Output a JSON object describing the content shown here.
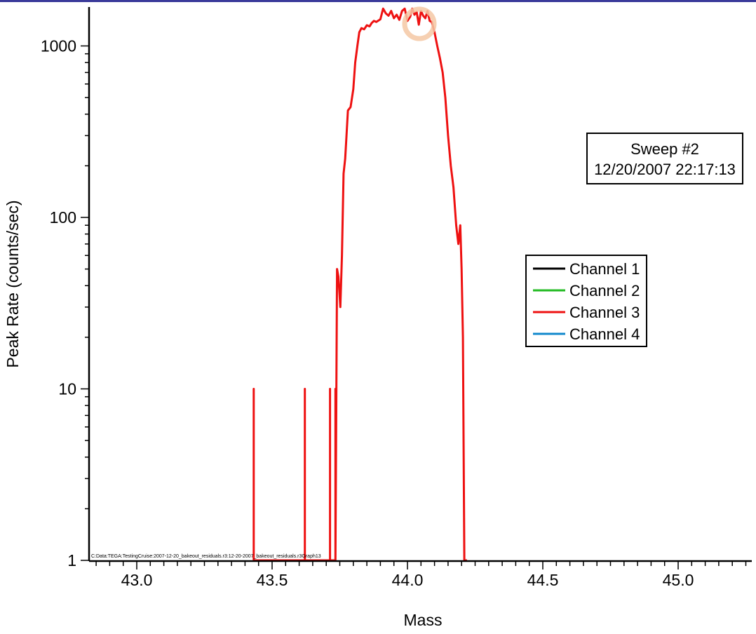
{
  "chart_data": {
    "type": "line",
    "xlabel": "Mass",
    "ylabel": "Peak Rate (counts/sec)",
    "xlim": [
      42.8,
      45.3
    ],
    "ylim": [
      1,
      1700
    ],
    "yscale": "log",
    "x_ticks": [
      "43.0",
      "43.5",
      "44.0",
      "44.5",
      "45.0"
    ],
    "y_ticks": [
      "1",
      "10",
      "100",
      "1000"
    ],
    "grid": false,
    "legend_placement": "right",
    "info_box": {
      "line1": "Sweep #2",
      "line2": "12/20/2007 22:17:13"
    },
    "file_path": "C:Data:TEGA:TestingCruise:2007-12-20_bakeout_residuals.r3:12-20-2007_bakeout_residuals.r3Graph13",
    "series": [
      {
        "name": "Channel 1",
        "color": "#000000",
        "x": [],
        "y": []
      },
      {
        "name": "Channel 2",
        "color": "#22bb22",
        "x": [],
        "y": []
      },
      {
        "name": "Channel 3",
        "color": "#ee1111",
        "x": [
          43.432,
          43.432,
          43.432,
          43.621,
          43.621,
          43.621,
          43.714,
          43.714,
          43.714,
          43.734,
          43.734,
          43.734,
          43.74,
          43.745,
          43.752,
          43.758,
          43.764,
          43.77,
          43.775,
          43.78,
          43.79,
          43.8,
          43.807,
          43.815,
          43.822,
          43.83,
          43.84,
          43.85,
          43.86,
          43.868,
          43.876,
          43.885,
          43.9,
          43.91,
          43.92,
          43.93,
          43.94,
          43.95,
          43.96,
          43.97,
          43.98,
          43.99,
          44.0,
          44.01,
          44.018,
          44.026,
          44.034,
          44.042,
          44.05,
          44.058,
          44.066,
          44.074,
          44.082,
          44.09,
          44.1,
          44.11,
          44.12,
          44.13,
          44.14,
          44.15,
          44.16,
          44.17,
          44.18,
          44.188,
          44.195,
          44.2,
          44.205,
          44.21,
          44.214,
          44.218,
          44.22
        ],
        "y": [
          1,
          10,
          1,
          1,
          10,
          1,
          1,
          10,
          1,
          1,
          10,
          1,
          50,
          45,
          30,
          60,
          180,
          220,
          300,
          420,
          440,
          560,
          800,
          1000,
          1200,
          1270,
          1250,
          1320,
          1300,
          1360,
          1400,
          1380,
          1430,
          1650,
          1550,
          1500,
          1600,
          1450,
          1520,
          1420,
          1600,
          1650,
          1400,
          1480,
          1650,
          1520,
          1580,
          1330,
          1600,
          1500,
          1450,
          1600,
          1400,
          1380,
          1200,
          1000,
          850,
          700,
          500,
          300,
          200,
          150,
          90,
          70,
          90,
          50,
          20,
          1,
          1,
          1,
          1
        ]
      },
      {
        "name": "Channel 4",
        "color": "#1188cc",
        "x": [],
        "y": []
      }
    ]
  }
}
